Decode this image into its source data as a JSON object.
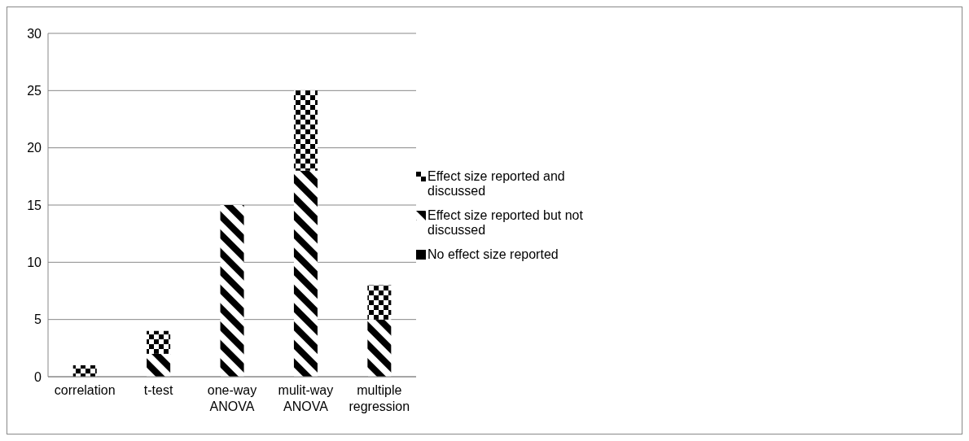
{
  "chart_data": {
    "type": "bar",
    "stacked": true,
    "categories": [
      "correlation",
      "t-test",
      "one-way ANOVA",
      "mulit-way ANOVA",
      "multiple regression"
    ],
    "series": [
      {
        "name": "No effect size reported",
        "color": "#000000",
        "values": [
          0,
          0,
          0,
          0,
          0
        ]
      },
      {
        "name": "Effect size reported but not discussed",
        "color": "#000000",
        "values": [
          0,
          2,
          15,
          18,
          5
        ]
      },
      {
        "name": "Effect size reported and discussed",
        "color": "#000000",
        "values": [
          1,
          2,
          0,
          7,
          3
        ]
      }
    ],
    "ylim": [
      0,
      30
    ],
    "yticks": [
      0,
      5,
      10,
      15,
      20,
      25,
      30
    ],
    "grid": "y",
    "legend": "right"
  }
}
